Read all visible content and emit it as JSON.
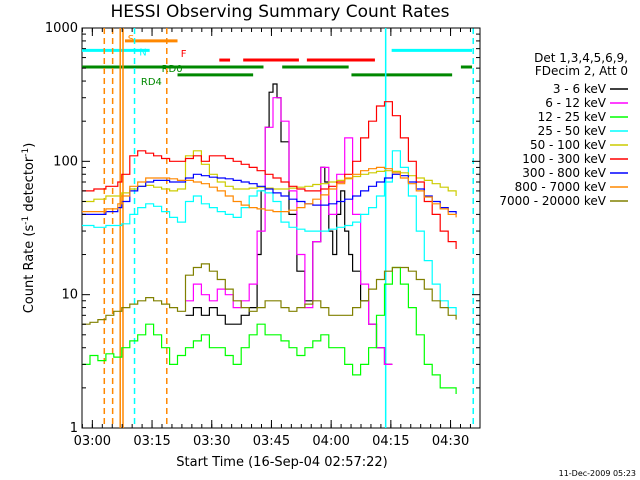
{
  "chart_data": {
    "type": "line",
    "title": "HESSI Observing Summary Count Rates",
    "xlabel": "Start Time (16-Sep-04 02:57:22)",
    "ylabel_main": "Count Rate (s",
    "ylabel_sup1": "-1",
    "ylabel_mid": " detector",
    "ylabel_sup2": "-1",
    "ylabel_end": ")",
    "yscale": "log",
    "ylim": [
      1,
      1000
    ],
    "xlim_minutes": [
      0,
      100
    ],
    "x_unit": "minutes after 02:57:22",
    "x_ticks": [
      {
        "label": "03:00",
        "t": 2.6
      },
      {
        "label": "03:15",
        "t": 17.6
      },
      {
        "label": "03:30",
        "t": 32.6
      },
      {
        "label": "03:45",
        "t": 47.6
      },
      {
        "label": "04:00",
        "t": 62.6
      },
      {
        "label": "04:15",
        "t": 77.6
      },
      {
        "label": "04:30",
        "t": 92.6
      }
    ],
    "y_ticks": [
      {
        "label": "1",
        "v": 1
      },
      {
        "label": "10",
        "v": 10
      },
      {
        "label": "100",
        "v": 100
      },
      {
        "label": "1000",
        "v": 1000
      }
    ],
    "legend_header": [
      "Det 1,3,4,5,6,9,",
      "FDecim 2, Att 0"
    ],
    "legend_placement": "right",
    "series": [
      {
        "name": "3 - 6 keV",
        "color": "#000000",
        "x": [
          26,
          28,
          30,
          32,
          34,
          36,
          38,
          40,
          42,
          44,
          45,
          46,
          47,
          48,
          49,
          50,
          52,
          54,
          56,
          58,
          60,
          61,
          62,
          63,
          64,
          65,
          66,
          67,
          68,
          70,
          72,
          74,
          76,
          78
        ],
        "y": [
          7,
          8,
          7,
          8,
          7,
          6,
          6,
          7,
          8,
          20,
          60,
          180,
          330,
          380,
          300,
          140,
          40,
          15,
          9,
          25,
          90,
          70,
          30,
          20,
          40,
          60,
          30,
          20,
          15,
          9,
          6,
          4,
          3,
          3
        ]
      },
      {
        "name": "6 - 12 keV",
        "color": "#ff00ff",
        "x": [
          26,
          28,
          30,
          32,
          34,
          36,
          38,
          40,
          42,
          44,
          46,
          48,
          50,
          52,
          54,
          56,
          58,
          60,
          62,
          64,
          66,
          68,
          70,
          72,
          74,
          76,
          78
        ],
        "y": [
          9,
          12,
          10,
          9,
          11,
          10,
          8,
          9,
          12,
          30,
          180,
          300,
          200,
          60,
          20,
          8,
          25,
          90,
          40,
          80,
          150,
          40,
          12,
          6,
          4,
          3,
          3
        ]
      },
      {
        "name": "12 - 25 keV",
        "color": "#00ff00",
        "x": [
          0,
          2,
          4,
          6,
          8,
          10,
          12,
          14,
          16,
          18,
          20,
          22,
          24,
          26,
          28,
          30,
          32,
          34,
          36,
          38,
          40,
          42,
          44,
          46,
          48,
          50,
          52,
          54,
          56,
          58,
          60,
          62,
          64,
          66,
          68,
          70,
          72,
          74,
          76,
          78,
          80,
          82,
          84,
          86,
          88,
          90,
          92,
          94
        ],
        "y": [
          3,
          3.5,
          3.2,
          3.6,
          3.4,
          4,
          4.5,
          5,
          6,
          5,
          4,
          3,
          3.5,
          4,
          4.5,
          5,
          4,
          4,
          3.5,
          3,
          4,
          5,
          6,
          5,
          5,
          4.5,
          4,
          3.5,
          4,
          4.5,
          5,
          4,
          4,
          3,
          2.5,
          3,
          4,
          7,
          12,
          16,
          12,
          8,
          5,
          3,
          2.5,
          2,
          2,
          1.8
        ]
      },
      {
        "name": "25 - 50 keV",
        "color": "#00ffff",
        "x": [
          0,
          3,
          6,
          9,
          10,
          12,
          14,
          16,
          18,
          20,
          22,
          24,
          26,
          28,
          30,
          32,
          34,
          36,
          38,
          40,
          42,
          44,
          46,
          48,
          50,
          52,
          54,
          56,
          58,
          60,
          62,
          64,
          66,
          68,
          70,
          72,
          74,
          76,
          78,
          80,
          82,
          84,
          86,
          88,
          90,
          92,
          94
        ],
        "y": [
          33,
          32,
          33,
          33,
          34,
          40,
          45,
          48,
          46,
          42,
          38,
          35,
          50,
          55,
          48,
          45,
          42,
          40,
          38,
          45,
          55,
          60,
          58,
          50,
          35,
          32,
          31,
          30,
          30,
          30,
          31,
          32,
          33,
          35,
          40,
          45,
          55,
          70,
          120,
          90,
          55,
          30,
          18,
          12,
          9,
          8,
          7
        ]
      },
      {
        "name": "50 - 100 keV",
        "color": "#cccc00",
        "x": [
          0,
          3,
          6,
          9,
          10,
          12,
          14,
          16,
          18,
          20,
          22,
          24,
          26,
          28,
          30,
          32,
          34,
          36,
          38,
          40,
          42,
          44,
          46,
          48,
          50,
          52,
          54,
          56,
          58,
          60,
          62,
          64,
          66,
          68,
          70,
          72,
          74,
          76,
          78,
          80,
          82,
          84,
          86,
          88,
          90,
          92,
          94
        ],
        "y": [
          50,
          52,
          55,
          55,
          58,
          62,
          65,
          66,
          64,
          62,
          60,
          62,
          110,
          120,
          95,
          80,
          70,
          65,
          62,
          62,
          63,
          64,
          63,
          62,
          62,
          63,
          64,
          65,
          67,
          68,
          70,
          72,
          74,
          77,
          80,
          82,
          84,
          85,
          84,
          82,
          78,
          75,
          72,
          68,
          64,
          60,
          55
        ]
      },
      {
        "name": "100 - 300 keV",
        "color": "#ff0000",
        "x": [
          0,
          3,
          6,
          9,
          10,
          12,
          14,
          16,
          18,
          20,
          22,
          24,
          26,
          28,
          30,
          32,
          34,
          36,
          38,
          40,
          42,
          44,
          46,
          48,
          50,
          52,
          54,
          56,
          58,
          60,
          62,
          64,
          66,
          68,
          70,
          72,
          74,
          76,
          78,
          80,
          82,
          84,
          86,
          88,
          90,
          92,
          94
        ],
        "y": [
          60,
          62,
          65,
          70,
          80,
          110,
          120,
          115,
          110,
          105,
          100,
          100,
          105,
          110,
          100,
          110,
          110,
          105,
          100,
          95,
          90,
          85,
          80,
          75,
          70,
          65,
          62,
          60,
          60,
          62,
          65,
          70,
          80,
          100,
          150,
          200,
          260,
          280,
          220,
          150,
          100,
          70,
          50,
          40,
          30,
          25,
          22
        ]
      },
      {
        "name": "300 - 800 keV",
        "color": "#0000ff",
        "x": [
          0,
          3,
          6,
          9,
          10,
          12,
          14,
          16,
          18,
          20,
          22,
          24,
          26,
          28,
          30,
          32,
          34,
          36,
          38,
          40,
          42,
          44,
          46,
          48,
          50,
          52,
          54,
          56,
          58,
          60,
          62,
          64,
          66,
          68,
          70,
          72,
          74,
          76,
          78,
          80,
          82,
          84,
          86,
          88,
          90,
          92,
          94
        ],
        "y": [
          40,
          40,
          42,
          45,
          50,
          60,
          65,
          70,
          72,
          72,
          70,
          70,
          75,
          80,
          78,
          76,
          75,
          74,
          72,
          70,
          68,
          65,
          62,
          58,
          55,
          52,
          50,
          48,
          47,
          47,
          48,
          50,
          52,
          55,
          60,
          65,
          70,
          75,
          80,
          78,
          70,
          62,
          55,
          50,
          45,
          42,
          40
        ]
      },
      {
        "name": "800 - 7000 keV",
        "color": "#ff8800",
        "x": [
          0,
          3,
          6,
          9,
          10,
          12,
          14,
          16,
          18,
          20,
          22,
          24,
          26,
          28,
          30,
          32,
          34,
          36,
          38,
          40,
          42,
          44,
          46,
          48,
          50,
          52,
          54,
          56,
          58,
          60,
          62,
          64,
          66,
          68,
          70,
          72,
          74,
          76,
          78,
          80,
          82,
          84,
          86,
          88,
          90,
          92,
          94
        ],
        "y": [
          42,
          42,
          44,
          48,
          55,
          65,
          70,
          75,
          75,
          75,
          74,
          72,
          72,
          70,
          68,
          64,
          60,
          55,
          50,
          47,
          45,
          44,
          43,
          42,
          42,
          43,
          45,
          48,
          52,
          56,
          62,
          68,
          75,
          80,
          85,
          88,
          90,
          88,
          82,
          75,
          68,
          60,
          54,
          48,
          44,
          40,
          38
        ]
      },
      {
        "name": "7000 - 20000 keV",
        "color": "#808000",
        "x": [
          0,
          2,
          4,
          6,
          8,
          10,
          12,
          14,
          16,
          18,
          20,
          22,
          24,
          26,
          28,
          30,
          32,
          34,
          36,
          38,
          40,
          42,
          44,
          46,
          48,
          50,
          52,
          54,
          56,
          58,
          60,
          62,
          64,
          66,
          68,
          70,
          72,
          74,
          76,
          78,
          80,
          82,
          84,
          86,
          88,
          90,
          92,
          94
        ],
        "y": [
          6,
          6.2,
          6.5,
          7,
          7.5,
          8,
          8.5,
          9,
          9.5,
          9,
          8.5,
          8,
          7.5,
          14,
          16,
          17,
          15,
          13,
          11,
          9,
          8,
          7.5,
          8,
          9,
          9,
          8,
          7.5,
          8,
          8.5,
          9,
          8,
          7,
          7,
          7,
          8,
          9,
          11,
          13,
          15,
          16,
          16,
          15,
          13,
          11,
          9,
          8,
          7,
          6.5
        ]
      }
    ],
    "vertical_lines": [
      {
        "t": 5.6,
        "color": "#ff8800",
        "dashed": true
      },
      {
        "t": 7.7,
        "color": "#ff8800",
        "dashed": true
      },
      {
        "t": 9.6,
        "color": "#ff8800",
        "dashed": false
      },
      {
        "t": 10.3,
        "color": "#ff8800",
        "dashed": false
      },
      {
        "t": 13.2,
        "color": "#00ffff",
        "dashed": true
      },
      {
        "t": 21.3,
        "color": "#ff8800",
        "dashed": true
      },
      {
        "t": 76.3,
        "color": "#00ffff",
        "dashed": false
      },
      {
        "t": 98.3,
        "color": "#00ffff",
        "dashed": true
      }
    ],
    "flag_bars": [
      {
        "label": "S",
        "color": "#ff8800",
        "segments": [
          [
            10.8,
            24.0
          ]
        ],
        "v": 800
      },
      {
        "label": "N",
        "color": "#00ffff",
        "segments": [
          [
            0,
            17.0
          ],
          [
            77.8,
            98.0
          ]
        ],
        "v": 680
      },
      {
        "label": "F",
        "color": "#ff0000",
        "segments": [
          [
            34.5,
            37.2
          ],
          [
            40.5,
            54.5
          ],
          [
            56.5,
            73.6
          ]
        ],
        "v": 575
      },
      {
        "label": "RD0",
        "color": "#008800",
        "segments": [
          [
            0,
            45.6
          ],
          [
            50.3,
            67.0
          ],
          [
            95.2,
            98.0
          ]
        ],
        "v": 510
      },
      {
        "label": "RD4",
        "color": "#008800",
        "segments": [
          [
            24.0,
            43.0
          ],
          [
            67.7,
            93.0
          ]
        ],
        "v": 445
      }
    ],
    "grid": false
  },
  "timestamp": "11-Dec-2009 05:23"
}
